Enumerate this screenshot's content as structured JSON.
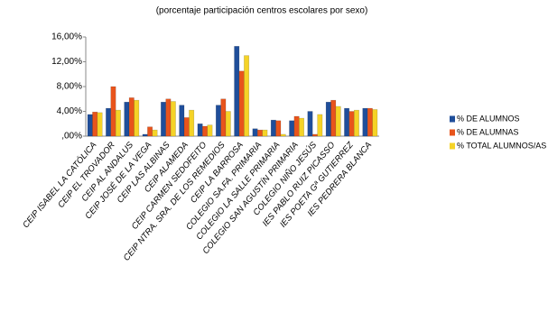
{
  "chart_data": {
    "type": "bar",
    "title": "(porcentaje participación centros escolares por sexo)",
    "categories": [
      "CEIP ISABEL LA CATÓLICA",
      "CEIP EL TROVADOR",
      "CEIP AL ANDALUS",
      "CEIP JOSÉ DE LA VEGA",
      "CEIP LAS ALBINAS",
      "CEIP ALAMEDA",
      "CEIP CARMEN SEDOFEITO",
      "CEIP NTRA. SRA. DE LOS REMEDIOS",
      "CEIP LA BARROSA",
      "COLEGIO SA.FA. PRIMARIA",
      "COLEGIO LA SALLE PRIMARIA",
      "COLEGIO SAN AGUSTÍN PRIMARIA",
      "COLEGIO NIÑO JESÚS",
      "IES PABLO RUIZ PICASSO",
      "IES POETA Gª GUTIERREZ",
      "IES PEDRERA BLANCA"
    ],
    "series": [
      {
        "name": "% DE ALUMNOS",
        "color": "#1f4e9a",
        "values": [
          3.5,
          4.5,
          5.5,
          0.3,
          5.5,
          5.0,
          2.0,
          5.0,
          14.5,
          1.2,
          2.6,
          2.5,
          4.0,
          5.5,
          4.5,
          4.5
        ]
      },
      {
        "name": "% DE ALUMNAS",
        "color": "#e8541c",
        "values": [
          3.9,
          8.0,
          6.2,
          1.5,
          6.0,
          3.0,
          1.6,
          6.0,
          10.5,
          1.0,
          2.5,
          3.2,
          0.3,
          5.8,
          4.0,
          4.5
        ]
      },
      {
        "name": "% TOTAL ALUMNOS/AS",
        "color": "#f5d327",
        "values": [
          3.8,
          4.2,
          5.8,
          1.0,
          5.6,
          4.2,
          1.8,
          4.0,
          13.0,
          1.0,
          0.3,
          2.9,
          3.5,
          4.8,
          4.2,
          4.3
        ]
      }
    ],
    "ylim": [
      0,
      16
    ],
    "yticks": [
      {
        "value": 0,
        "label": ",00%"
      },
      {
        "value": 4,
        "label": "4,00%"
      },
      {
        "value": 8,
        "label": "8,00%"
      },
      {
        "value": 12,
        "label": "12,00%"
      },
      {
        "value": 16,
        "label": "16,00%"
      }
    ],
    "grid": false,
    "legend": "right"
  }
}
